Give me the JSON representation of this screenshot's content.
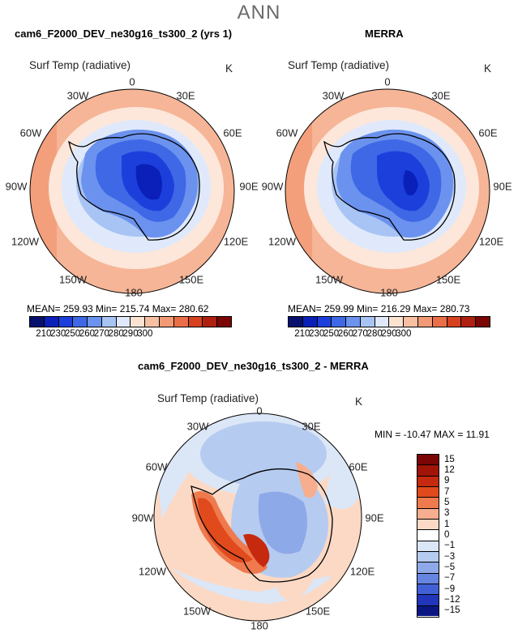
{
  "header": {
    "season": "ANN"
  },
  "panel1": {
    "title": "cam6_F2000_DEV_ne30g16_ts300_2 (yrs 1)",
    "variable": "Surf Temp (radiative)",
    "units": "K",
    "stats": "MEAN= 259.93   Min= 215.74   Max= 280.62",
    "colorbar_labels": [
      "210",
      "230",
      "250",
      "260",
      "270",
      "280",
      "290",
      "300"
    ]
  },
  "panel2": {
    "title": "MERRA",
    "variable": "Surf Temp (radiative)",
    "units": "K",
    "stats": "MEAN= 259.99   Min= 216.29   Max= 280.73",
    "colorbar_labels": [
      "210",
      "230",
      "250",
      "260",
      "270",
      "280",
      "290",
      "300"
    ]
  },
  "panel3": {
    "title": "cam6_F2000_DEV_ne30g16_ts300_2 - MERRA",
    "variable": "Surf Temp (radiative)",
    "units": "K",
    "stats": "MIN = -10.47  MAX =  11.91",
    "colorbar_labels": [
      "15",
      "12",
      "9",
      "7",
      "5",
      "3",
      "1",
      "0",
      "−1",
      "−3",
      "−5",
      "−7",
      "−9",
      "−12",
      "−15"
    ]
  },
  "longitude_labels": {
    "l0": "0",
    "l30e": "30E",
    "l60e": "60E",
    "l90e": "90E",
    "l120e": "120E",
    "l150e": "150E",
    "l180": "180",
    "l150w": "150W",
    "l120w": "120W",
    "l90w": "90W",
    "l60w": "60W",
    "l30w": "30W"
  },
  "colors": {
    "abs_scale": [
      "#08106e",
      "#0a20b8",
      "#1c3fdc",
      "#3f68e6",
      "#6b92ee",
      "#a8c4f4",
      "#dfe9fb",
      "#fbe3d2",
      "#f7c0a3",
      "#f29a76",
      "#ea6f48",
      "#d6411f",
      "#b02010",
      "#7a0606"
    ],
    "diff_scale": [
      "#7a0606",
      "#a01508",
      "#c62a0e",
      "#e04a1c",
      "#ee7a4e",
      "#f6ae8e",
      "#fcd9c4",
      "#ffffff",
      "#dbe6f7",
      "#b6cbf0",
      "#8ea9e8",
      "#6585e0",
      "#4160d6",
      "#2136bb",
      "#0a1782"
    ]
  }
}
